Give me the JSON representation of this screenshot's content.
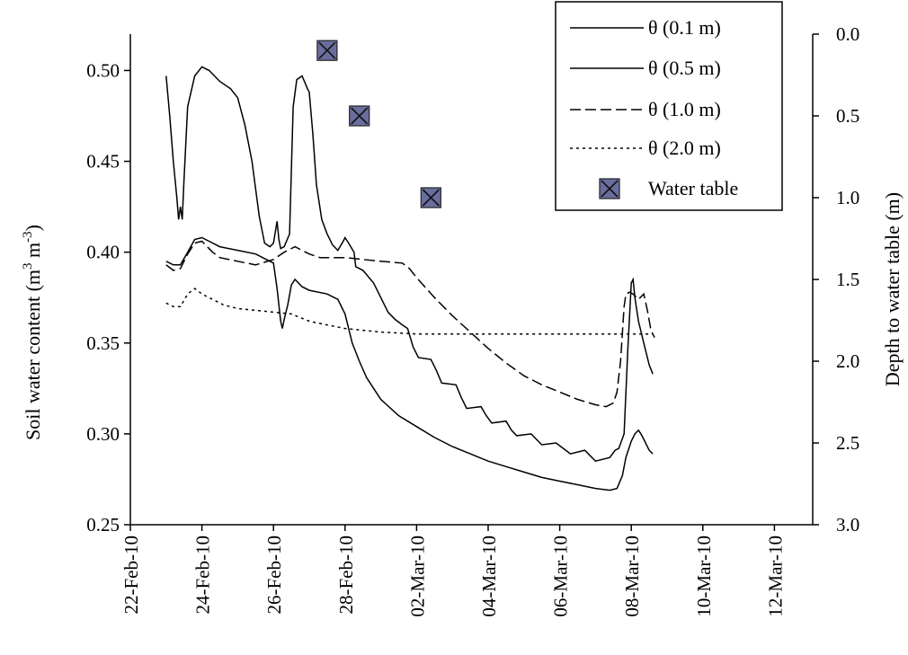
{
  "chart_data": {
    "type": "line",
    "xlabel": "",
    "ylabel": "Soil water content (m³ m⁻³)",
    "ylabel_parts": {
      "main": "Soil water content (m",
      "sup1": "3",
      "mid": " m",
      "sup2": "-3",
      "end": ")"
    },
    "y2label": "Depth to water table (m)",
    "x_tick_labels": [
      "22-Feb-10",
      "24-Feb-10",
      "26-Feb-10",
      "28-Feb-10",
      "02-Mar-10",
      "04-Mar-10",
      "06-Mar-10",
      "08-Mar-10",
      "10-Mar-10",
      "12-Mar-10"
    ],
    "x_range_days": [
      0,
      18
    ],
    "ylim": [
      0.25,
      0.52
    ],
    "y_ticks": [
      "0.25",
      "0.30",
      "0.35",
      "0.40",
      "0.45",
      "0.50"
    ],
    "y2lim_inverted": [
      0.0,
      3.0
    ],
    "y2_ticks": [
      "0.0",
      "0.5",
      "1.0",
      "1.5",
      "2.0",
      "2.5",
      "3.0"
    ],
    "grid": false,
    "legend_position": "top-right",
    "series": [
      {
        "name": "θ (0.1 m)",
        "style": "solid",
        "points": [
          [
            1.0,
            0.497
          ],
          [
            1.1,
            0.475
          ],
          [
            1.2,
            0.45
          ],
          [
            1.3,
            0.43
          ],
          [
            1.35,
            0.418
          ],
          [
            1.4,
            0.425
          ],
          [
            1.45,
            0.418
          ],
          [
            1.5,
            0.44
          ],
          [
            1.6,
            0.48
          ],
          [
            1.8,
            0.497
          ],
          [
            2.0,
            0.502
          ],
          [
            2.2,
            0.5
          ],
          [
            2.5,
            0.494
          ],
          [
            2.8,
            0.49
          ],
          [
            3.0,
            0.485
          ],
          [
            3.2,
            0.47
          ],
          [
            3.4,
            0.45
          ],
          [
            3.6,
            0.42
          ],
          [
            3.75,
            0.405
          ],
          [
            3.9,
            0.403
          ],
          [
            4.0,
            0.405
          ],
          [
            4.1,
            0.417
          ],
          [
            4.15,
            0.407
          ],
          [
            4.2,
            0.402
          ],
          [
            4.3,
            0.403
          ],
          [
            4.45,
            0.41
          ],
          [
            4.55,
            0.48
          ],
          [
            4.65,
            0.495
          ],
          [
            4.8,
            0.497
          ],
          [
            4.95,
            0.49
          ],
          [
            5.0,
            0.488
          ],
          [
            5.1,
            0.465
          ],
          [
            5.2,
            0.437
          ],
          [
            5.35,
            0.418
          ],
          [
            5.5,
            0.41
          ],
          [
            5.65,
            0.404
          ],
          [
            5.8,
            0.401
          ],
          [
            5.95,
            0.406
          ],
          [
            6.0,
            0.408
          ],
          [
            6.1,
            0.405
          ],
          [
            6.25,
            0.4
          ],
          [
            6.3,
            0.392
          ],
          [
            6.5,
            0.39
          ],
          [
            6.8,
            0.383
          ],
          [
            7.0,
            0.375
          ],
          [
            7.2,
            0.367
          ],
          [
            7.4,
            0.363
          ],
          [
            7.6,
            0.36
          ],
          [
            7.75,
            0.358
          ],
          [
            7.9,
            0.348
          ],
          [
            8.05,
            0.342
          ],
          [
            8.4,
            0.341
          ],
          [
            8.55,
            0.335
          ],
          [
            8.7,
            0.328
          ],
          [
            9.1,
            0.327
          ],
          [
            9.25,
            0.32
          ],
          [
            9.4,
            0.314
          ],
          [
            9.8,
            0.315
          ],
          [
            9.95,
            0.31
          ],
          [
            10.1,
            0.306
          ],
          [
            10.5,
            0.307
          ],
          [
            10.65,
            0.302
          ],
          [
            10.8,
            0.299
          ],
          [
            11.2,
            0.3
          ],
          [
            11.35,
            0.297
          ],
          [
            11.5,
            0.294
          ],
          [
            11.9,
            0.295
          ],
          [
            12.1,
            0.292
          ],
          [
            12.3,
            0.289
          ],
          [
            12.7,
            0.291
          ],
          [
            12.85,
            0.288
          ],
          [
            13.0,
            0.285
          ],
          [
            13.4,
            0.287
          ],
          [
            13.55,
            0.291
          ],
          [
            13.65,
            0.292
          ],
          [
            13.8,
            0.3
          ],
          [
            13.9,
            0.345
          ],
          [
            14.0,
            0.383
          ],
          [
            14.05,
            0.385
          ],
          [
            14.1,
            0.375
          ],
          [
            14.2,
            0.362
          ],
          [
            14.35,
            0.35
          ],
          [
            14.5,
            0.338
          ],
          [
            14.6,
            0.333
          ]
        ]
      },
      {
        "name": "θ (0.5 m)",
        "style": "solid",
        "points": [
          [
            1.0,
            0.395
          ],
          [
            1.2,
            0.393
          ],
          [
            1.4,
            0.393
          ],
          [
            1.6,
            0.4
          ],
          [
            1.8,
            0.407
          ],
          [
            2.0,
            0.408
          ],
          [
            2.2,
            0.406
          ],
          [
            2.5,
            0.403
          ],
          [
            3.0,
            0.401
          ],
          [
            3.5,
            0.399
          ],
          [
            4.0,
            0.394
          ],
          [
            4.1,
            0.38
          ],
          [
            4.2,
            0.362
          ],
          [
            4.25,
            0.358
          ],
          [
            4.3,
            0.363
          ],
          [
            4.4,
            0.371
          ],
          [
            4.5,
            0.382
          ],
          [
            4.6,
            0.385
          ],
          [
            4.8,
            0.381
          ],
          [
            5.0,
            0.379
          ],
          [
            5.5,
            0.377
          ],
          [
            5.8,
            0.374
          ],
          [
            6.0,
            0.366
          ],
          [
            6.2,
            0.35
          ],
          [
            6.4,
            0.34
          ],
          [
            6.6,
            0.331
          ],
          [
            6.8,
            0.325
          ],
          [
            7.0,
            0.319
          ],
          [
            7.5,
            0.31
          ],
          [
            8.0,
            0.304
          ],
          [
            8.5,
            0.298
          ],
          [
            9.0,
            0.293
          ],
          [
            9.5,
            0.289
          ],
          [
            10.0,
            0.285
          ],
          [
            10.5,
            0.282
          ],
          [
            11.0,
            0.279
          ],
          [
            11.5,
            0.276
          ],
          [
            12.0,
            0.274
          ],
          [
            12.5,
            0.272
          ],
          [
            13.0,
            0.27
          ],
          [
            13.4,
            0.269
          ],
          [
            13.6,
            0.27
          ],
          [
            13.75,
            0.277
          ],
          [
            13.85,
            0.287
          ],
          [
            14.0,
            0.296
          ],
          [
            14.1,
            0.3
          ],
          [
            14.2,
            0.302
          ],
          [
            14.3,
            0.299
          ],
          [
            14.4,
            0.295
          ],
          [
            14.5,
            0.291
          ],
          [
            14.6,
            0.289
          ]
        ]
      },
      {
        "name": "θ (1.0 m)",
        "style": "dashed",
        "points": [
          [
            1.0,
            0.393
          ],
          [
            1.2,
            0.39
          ],
          [
            1.4,
            0.391
          ],
          [
            1.6,
            0.399
          ],
          [
            1.8,
            0.405
          ],
          [
            2.0,
            0.406
          ],
          [
            2.3,
            0.4
          ],
          [
            2.5,
            0.397
          ],
          [
            3.0,
            0.395
          ],
          [
            3.5,
            0.393
          ],
          [
            4.0,
            0.396
          ],
          [
            4.3,
            0.4
          ],
          [
            4.6,
            0.403
          ],
          [
            4.8,
            0.401
          ],
          [
            5.0,
            0.399
          ],
          [
            5.3,
            0.397
          ],
          [
            6.0,
            0.397
          ],
          [
            6.5,
            0.396
          ],
          [
            7.0,
            0.395
          ],
          [
            7.6,
            0.394
          ],
          [
            7.8,
            0.391
          ],
          [
            8.0,
            0.386
          ],
          [
            8.5,
            0.375
          ],
          [
            9.0,
            0.365
          ],
          [
            9.5,
            0.356
          ],
          [
            10.0,
            0.347
          ],
          [
            10.5,
            0.339
          ],
          [
            11.0,
            0.332
          ],
          [
            11.5,
            0.327
          ],
          [
            12.0,
            0.323
          ],
          [
            12.5,
            0.319
          ],
          [
            13.0,
            0.316
          ],
          [
            13.3,
            0.315
          ],
          [
            13.5,
            0.317
          ],
          [
            13.6,
            0.323
          ],
          [
            13.7,
            0.34
          ],
          [
            13.8,
            0.37
          ],
          [
            13.85,
            0.377
          ],
          [
            13.95,
            0.378
          ],
          [
            14.05,
            0.377
          ],
          [
            14.2,
            0.374
          ],
          [
            14.35,
            0.377
          ],
          [
            14.45,
            0.368
          ],
          [
            14.55,
            0.357
          ],
          [
            14.65,
            0.353
          ]
        ]
      },
      {
        "name": "θ (2.0 m)",
        "style": "dotted",
        "points": [
          [
            1.0,
            0.372
          ],
          [
            1.2,
            0.37
          ],
          [
            1.4,
            0.37
          ],
          [
            1.6,
            0.377
          ],
          [
            1.8,
            0.38
          ],
          [
            2.0,
            0.377
          ],
          [
            2.3,
            0.374
          ],
          [
            2.6,
            0.371
          ],
          [
            3.0,
            0.369
          ],
          [
            3.5,
            0.368
          ],
          [
            4.0,
            0.367
          ],
          [
            4.5,
            0.366
          ],
          [
            5.0,
            0.362
          ],
          [
            5.5,
            0.36
          ],
          [
            6.0,
            0.358
          ],
          [
            6.5,
            0.357
          ],
          [
            7.0,
            0.356
          ],
          [
            8.0,
            0.355
          ],
          [
            9.0,
            0.355
          ],
          [
            10.0,
            0.355
          ],
          [
            11.0,
            0.355
          ],
          [
            12.0,
            0.355
          ],
          [
            13.0,
            0.355
          ],
          [
            14.0,
            0.355
          ],
          [
            14.6,
            0.355
          ]
        ]
      }
    ],
    "water_table": {
      "name": "Water table",
      "points": [
        [
          5.5,
          0.1
        ],
        [
          6.4,
          0.5
        ],
        [
          8.4,
          1.0
        ]
      ],
      "marker_fill": "#6a6e9e",
      "marker_stroke": "#222222"
    }
  }
}
